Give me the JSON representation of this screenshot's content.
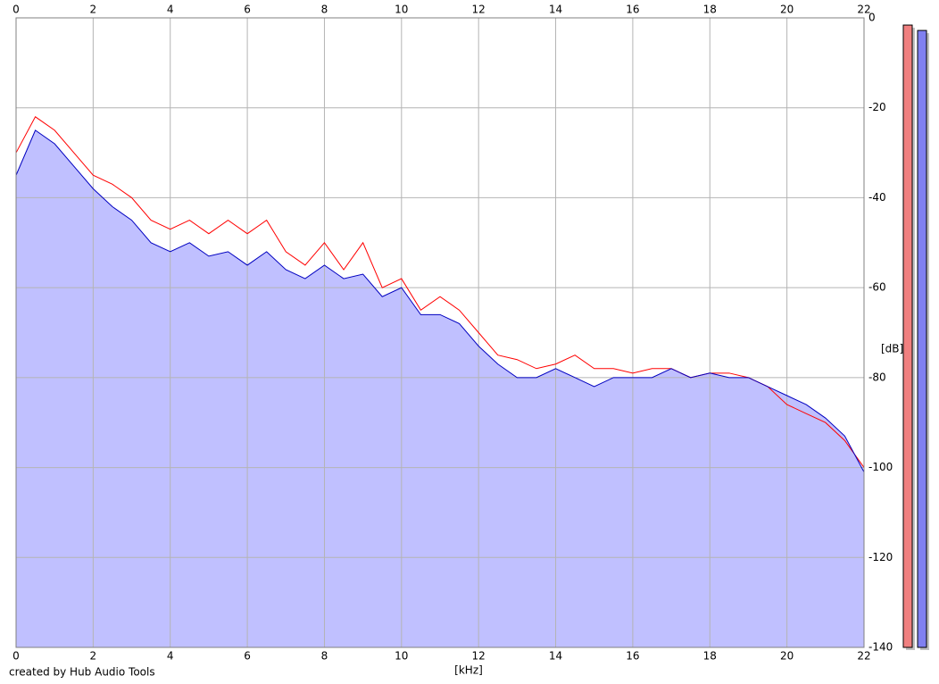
{
  "chart_data": {
    "type": "spectrum",
    "x_label": "[kHz]",
    "y_label": "[dB]",
    "footer": "created by Hub Audio Tools",
    "x": [
      0,
      0.5,
      1,
      1.5,
      2,
      2.5,
      3,
      3.5,
      4,
      4.5,
      5,
      5.5,
      6,
      6.5,
      7,
      7.5,
      8,
      8.5,
      9,
      9.5,
      10,
      10.5,
      11,
      11.5,
      12,
      12.5,
      13,
      13.5,
      14,
      14.5,
      15,
      15.5,
      16,
      16.5,
      17,
      17.5,
      18,
      18.5,
      19,
      19.5,
      20,
      20.5,
      21,
      21.5,
      22
    ],
    "series": [
      {
        "color": "#ff0000",
        "values": [
          -30,
          -22,
          -25,
          -30,
          -35,
          -37,
          -40,
          -45,
          -47,
          -45,
          -48,
          -45,
          -48,
          -45,
          -52,
          -55,
          -50,
          -56,
          -50,
          -60,
          -58,
          -65,
          -62,
          -65,
          -70,
          -75,
          -76,
          -78,
          -77,
          -75,
          -78,
          -78,
          -79,
          -78,
          -78,
          -80,
          -79,
          -79,
          -80,
          -82,
          -86,
          -88,
          -90,
          -94,
          -100
        ]
      },
      {
        "color": "#0000c0",
        "fill": "#c0c0ff",
        "values": [
          -35,
          -25,
          -28,
          -33,
          -38,
          -42,
          -45,
          -50,
          -52,
          -50,
          -53,
          -52,
          -55,
          -52,
          -56,
          -58,
          -55,
          -58,
          -57,
          -62,
          -60,
          -66,
          -66,
          -68,
          -73,
          -77,
          -80,
          -80,
          -78,
          -80,
          -82,
          -80,
          -80,
          -80,
          -78,
          -80,
          -79,
          -80,
          -80,
          -82,
          -84,
          -86,
          -89,
          -93,
          -101
        ]
      }
    ],
    "xlim": [
      0,
      22
    ],
    "xticks": [
      0,
      2,
      4,
      6,
      8,
      10,
      12,
      14,
      16,
      18,
      20,
      22
    ],
    "ylim": [
      -140,
      0
    ],
    "yticks": [
      0,
      -20,
      -40,
      -60,
      -80,
      -100,
      -120,
      -140
    ],
    "grid": true,
    "meters": [
      {
        "color": "#f08080",
        "value": -1.6
      },
      {
        "color": "#8080f0",
        "value": -2.8
      }
    ]
  }
}
